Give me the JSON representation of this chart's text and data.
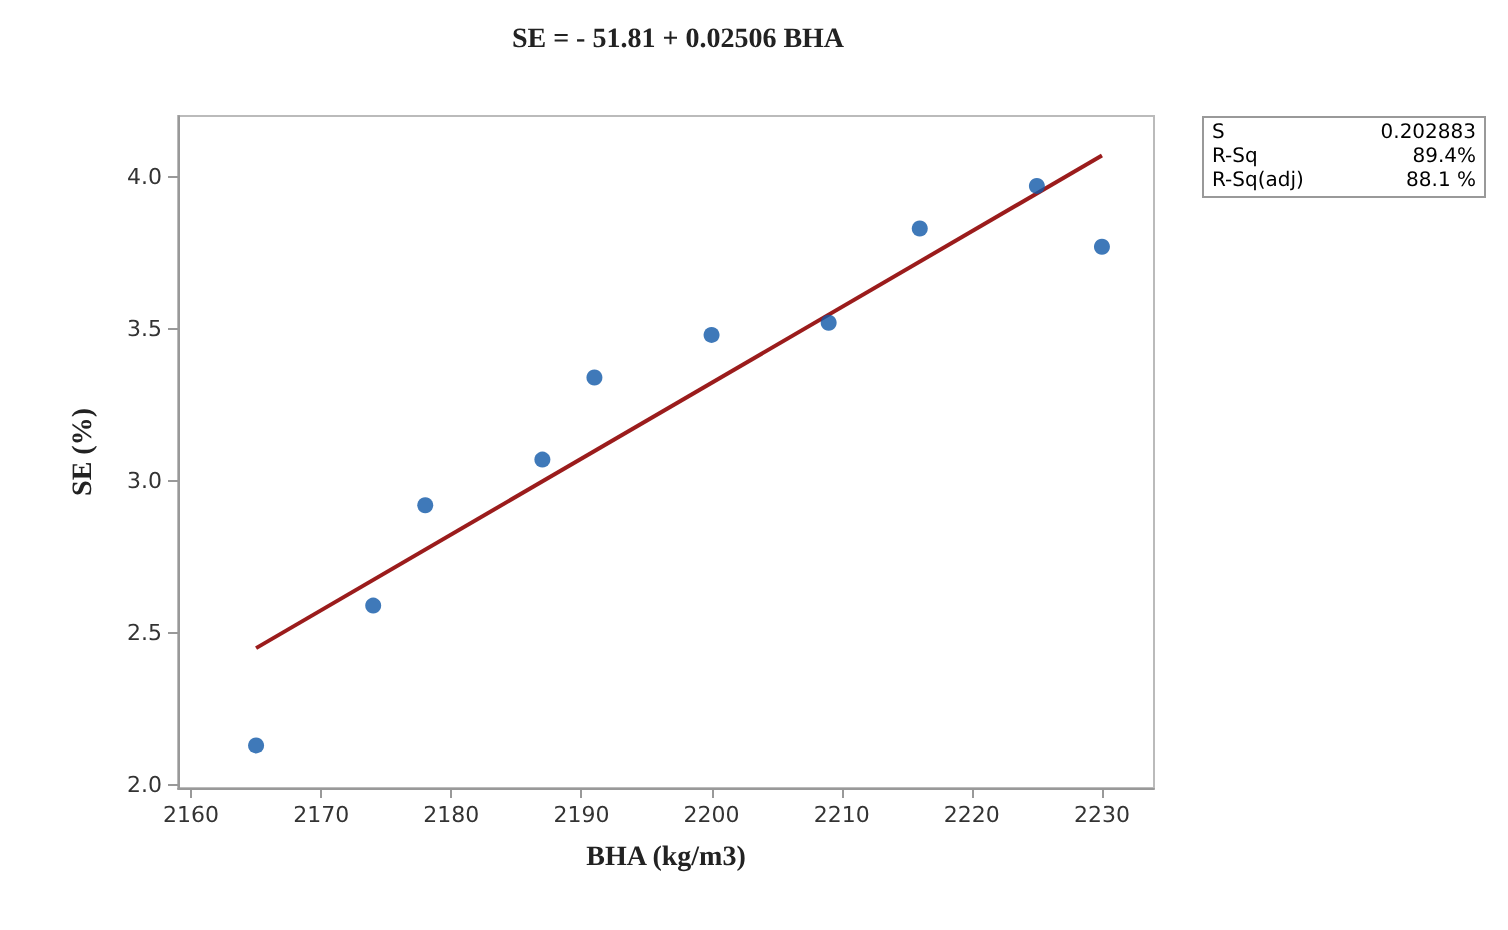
{
  "chart_data": {
    "type": "scatter",
    "title": "SE = - 51.81 + 0.02506 BHA",
    "xlabel": "BHA (kg/m3)",
    "ylabel": "SE (%)",
    "xlim": [
      2159,
      2234
    ],
    "xticks": [
      2160,
      2170,
      2180,
      2190,
      2200,
      2210,
      2220,
      2230
    ],
    "ylim": [
      1.99,
      4.2
    ],
    "yticks": [
      {
        "value": 2,
        "label": "2.0"
      },
      2.5,
      {
        "value": 3,
        "label": "3.0"
      },
      3.5,
      {
        "value": 4,
        "label": "4.0"
      }
    ],
    "marker": "circle",
    "grid": false,
    "series": [
      {
        "color": "#0f57a8",
        "x": [
          2165,
          2174,
          2178,
          2187,
          2191,
          2200,
          2209,
          2216,
          2225,
          2230
        ],
        "values": [
          2.13,
          2.59,
          2.92,
          3.07,
          3.34,
          3.48,
          3.52,
          3.83,
          3.97,
          3.77
        ]
      },
      {
        "type": "line",
        "color": "#9b1c1c",
        "x": [
          2165,
          2230
        ],
        "values": [
          2.45,
          4.07
        ],
        "marker": "none",
        "line_style": "solid"
      }
    ],
    "annotations": [
      "S",
      "0.202883",
      "R-Sq",
      "89.4%",
      "R-Sq(adj)",
      "88.1 %"
    ]
  }
}
